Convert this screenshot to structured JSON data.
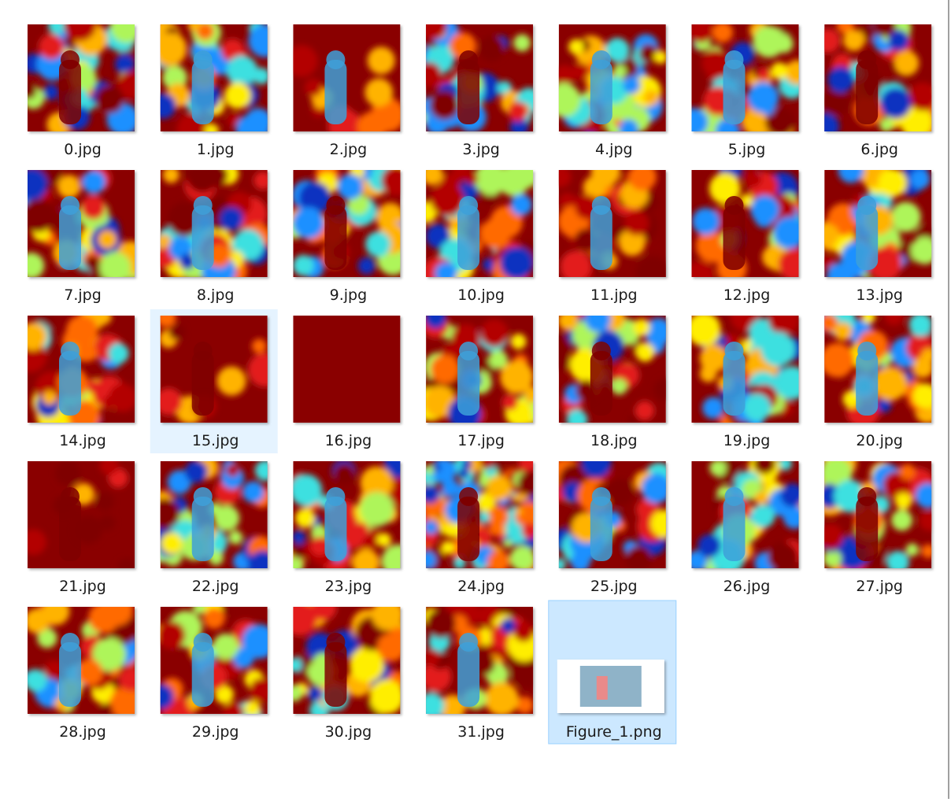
{
  "files": [
    "0.jpg",
    "1.jpg",
    "2.jpg",
    "3.jpg",
    "4.jpg",
    "5.jpg",
    "6.jpg",
    "7.jpg",
    "8.jpg",
    "9.jpg",
    "10.jpg",
    "11.jpg",
    "12.jpg",
    "13.jpg",
    "14.jpg",
    "15.jpg",
    "16.jpg",
    "17.jpg",
    "18.jpg",
    "19.jpg",
    "20.jpg",
    "21.jpg",
    "22.jpg",
    "23.jpg",
    "24.jpg",
    "25.jpg",
    "26.jpg",
    "27.jpg",
    "28.jpg",
    "29.jpg",
    "30.jpg",
    "31.jpg",
    "Figure_1.png"
  ]
}
